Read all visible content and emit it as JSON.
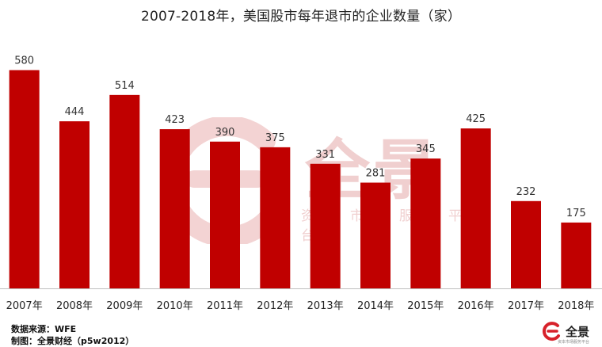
{
  "title": "2007-2018年，美国股市每年退市的企业数量（家）",
  "chart_data": {
    "type": "bar",
    "title": "2007-2018年，美国股市每年退市的企业数量（家）",
    "categories": [
      "2007年",
      "2008年",
      "2009年",
      "2010年",
      "2011年",
      "2012年",
      "2013年",
      "2014年",
      "2015年",
      "2016年",
      "2017年",
      "2018年"
    ],
    "values": [
      580,
      444,
      514,
      423,
      390,
      375,
      331,
      281,
      345,
      425,
      232,
      175
    ],
    "ylim": [
      0,
      640
    ],
    "bar_color": "#c00000",
    "grid": false,
    "xlabel": "",
    "ylabel": ""
  },
  "watermark": {
    "text": "全景",
    "subtext": "资本市场服务平台"
  },
  "footer": {
    "source": "数据来源：WFE",
    "maker": "制图：全景财经（p5w2012）"
  },
  "brand": {
    "name": "全景",
    "tagline": "资本市场服务平台",
    "accent": "#d7212a"
  }
}
